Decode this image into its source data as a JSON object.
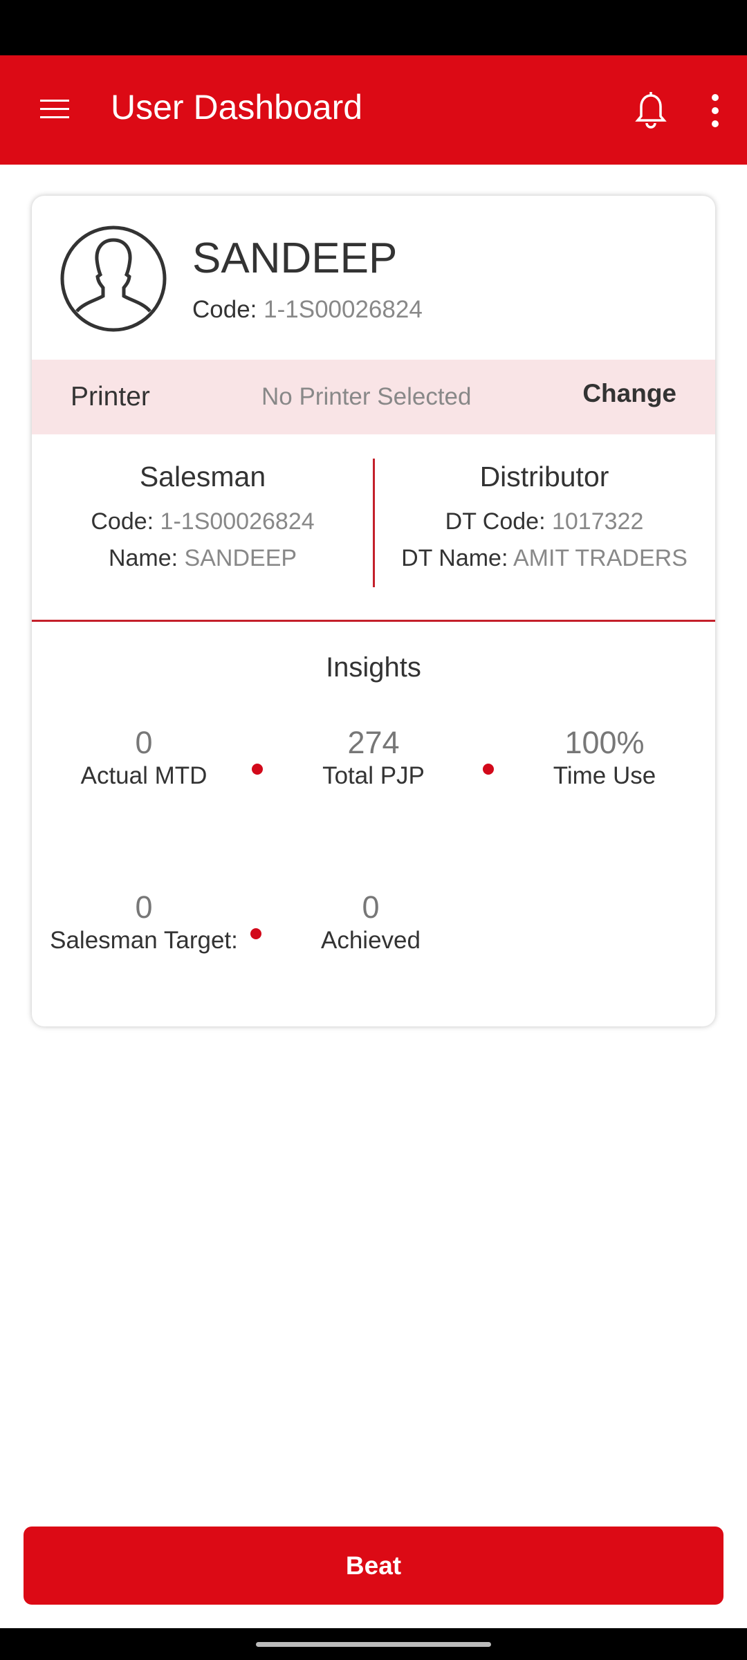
{
  "header": {
    "title": "User Dashboard",
    "icons": [
      "menu-icon",
      "bell-icon",
      "more-vert-icon"
    ]
  },
  "profile": {
    "name": "SANDEEP",
    "code_label": "Code:",
    "code": "1-1S00026824"
  },
  "printer": {
    "label": "Printer",
    "value": "No Printer Selected",
    "change": "Change"
  },
  "salesman": {
    "title": "Salesman",
    "code_label": "Code:",
    "code": "1-1S00026824",
    "name_label": "Name:",
    "name": "SANDEEP"
  },
  "distributor": {
    "title": "Distributor",
    "code_label": "DT Code:",
    "code": "1017322",
    "name_label": "DT Name:",
    "name": "AMIT TRADERS"
  },
  "insights": {
    "title": "Insights",
    "stats": [
      {
        "value": "0",
        "label": "Actual MTD"
      },
      {
        "value": "274",
        "label": "Total PJP"
      },
      {
        "value": "100%",
        "label": "Time Use"
      },
      {
        "value": "0",
        "label": "Salesman Target:"
      },
      {
        "value": "0",
        "label": "Achieved"
      }
    ]
  },
  "footer": {
    "beat": "Beat"
  },
  "colors": {
    "brand": "#dc0a15",
    "printer_bg": "#f9e4e6"
  }
}
